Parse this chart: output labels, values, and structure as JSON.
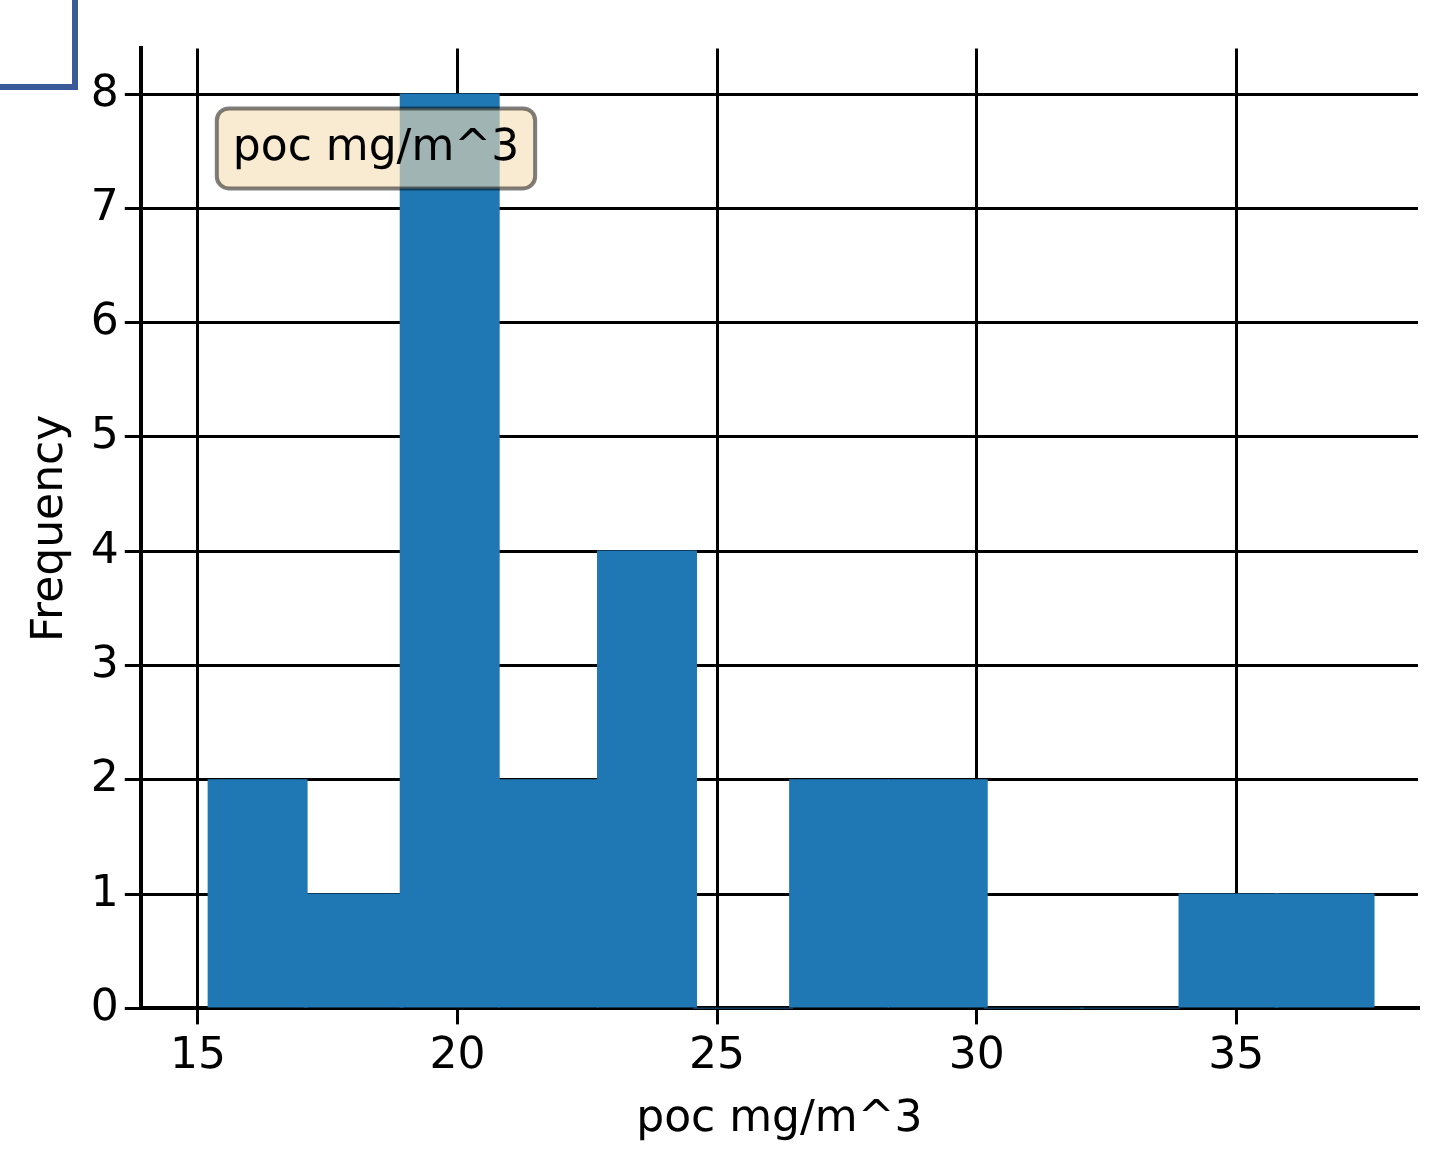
{
  "chart_data": {
    "type": "histogram",
    "xlabel": "poc mg/m^3",
    "ylabel": "Frequency",
    "annotations": [
      "poc mg/m^3"
    ],
    "bins": [
      15.2,
      17.1,
      18.9,
      20.8,
      22.7,
      24.6,
      26.4,
      28.3,
      30.2,
      32.0,
      33.9,
      35.8,
      37.6
    ],
    "values": [
      2,
      1,
      8,
      2,
      4,
      0,
      2,
      2,
      0,
      0,
      1,
      1
    ],
    "color": "#1f77b4",
    "xlim": [
      13.9,
      38.5
    ],
    "xticks": [
      15,
      20,
      25,
      30,
      35
    ],
    "ylim": [
      0,
      8.4
    ],
    "yticks": [
      0,
      1,
      2,
      3,
      4,
      5,
      6,
      7,
      8
    ],
    "grid": true
  }
}
